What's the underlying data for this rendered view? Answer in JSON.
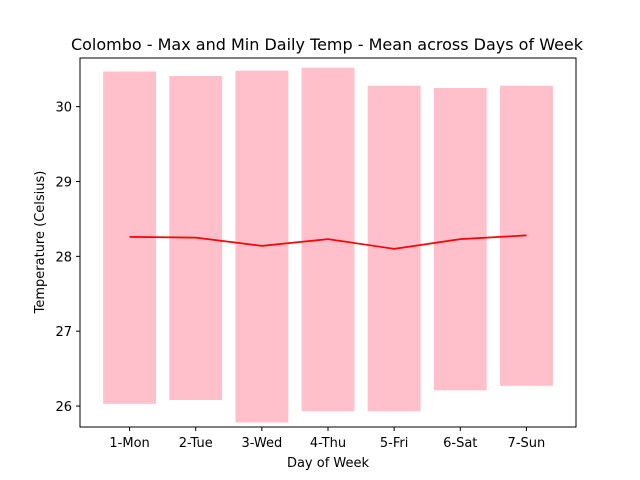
{
  "chart_data": {
    "type": "bar",
    "title": "Colombo - Max and Min Daily Temp - Mean across Days of Week",
    "xlabel": "Day of Week",
    "ylabel": "Temperature (Celsius)",
    "categories": [
      "1-Mon",
      "2-Tue",
      "3-Wed",
      "4-Thu",
      "5-Fri",
      "6-Sat",
      "7-Sun"
    ],
    "ylim": [
      25.72,
      30.65
    ],
    "yticks": [
      26,
      27,
      28,
      29,
      30
    ],
    "grid": false,
    "series": [
      {
        "kind": "floating-bar",
        "color": "#ffc0cb",
        "low": [
          26.03,
          26.08,
          25.78,
          25.93,
          25.93,
          26.21,
          26.27
        ],
        "high": [
          30.47,
          30.41,
          30.48,
          30.52,
          30.28,
          30.25,
          30.28
        ]
      },
      {
        "kind": "line",
        "color": "#ff0000",
        "values": [
          28.26,
          28.25,
          28.14,
          28.23,
          28.1,
          28.23,
          28.28
        ]
      }
    ]
  }
}
